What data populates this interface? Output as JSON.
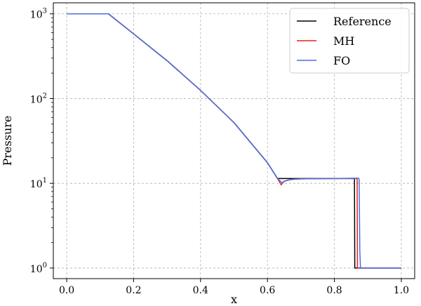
{
  "chart_data": {
    "type": "line",
    "title": "",
    "xlabel": "x",
    "ylabel": "Pressure",
    "xlim": [
      -0.04,
      1.04
    ],
    "ylim": [
      0.75,
      1350
    ],
    "yscale": "log",
    "grid": true,
    "grid_style": "dashed",
    "legend_position": "top-right",
    "x_ticks": [
      0.0,
      0.2,
      0.4,
      0.6,
      0.8,
      1.0
    ],
    "x_tick_labels": [
      "0.0",
      "0.2",
      "0.4",
      "0.6",
      "0.8",
      "1.0"
    ],
    "y_ticks": [
      1,
      10,
      100,
      1000
    ],
    "y_tick_labels": [
      {
        "base": "10",
        "exp": "0"
      },
      {
        "base": "10",
        "exp": "1"
      },
      {
        "base": "10",
        "exp": "2"
      },
      {
        "base": "10",
        "exp": "3"
      }
    ],
    "series": [
      {
        "name": "Reference",
        "color": "#000000",
        "x": [
          0.0,
          0.125,
          0.2,
          0.3,
          0.4,
          0.5,
          0.6,
          0.63,
          0.7,
          0.8,
          0.86,
          0.861,
          0.87,
          1.0
        ],
        "y": [
          1000,
          1000,
          580,
          280,
          125,
          52,
          17.5,
          11.4,
          11.4,
          11.4,
          11.4,
          1.0,
          1.0,
          1.0
        ]
      },
      {
        "name": "MH",
        "color": "#e8201e",
        "x": [
          0.0,
          0.125,
          0.2,
          0.3,
          0.4,
          0.5,
          0.6,
          0.63,
          0.641,
          0.65,
          0.67,
          0.7,
          0.8,
          0.868,
          0.869,
          0.88,
          1.0
        ],
        "y": [
          1000,
          1000,
          580,
          280,
          125,
          52,
          17.5,
          11.4,
          9.6,
          10.6,
          11.1,
          11.3,
          11.4,
          11.4,
          1.0,
          1.0,
          1.0
        ]
      },
      {
        "name": "FO",
        "color": "#4a6fdf",
        "x": [
          0.0,
          0.125,
          0.2,
          0.3,
          0.4,
          0.5,
          0.6,
          0.63,
          0.643,
          0.66,
          0.68,
          0.72,
          0.8,
          0.872,
          0.874,
          0.876,
          0.878,
          0.88,
          1.0
        ],
        "y": [
          1000,
          1000,
          580,
          280,
          125,
          52,
          17.5,
          11.4,
          10.2,
          10.9,
          11.2,
          11.3,
          11.4,
          11.5,
          11.2,
          1.6,
          1.0,
          1.0,
          1.0
        ]
      }
    ]
  }
}
